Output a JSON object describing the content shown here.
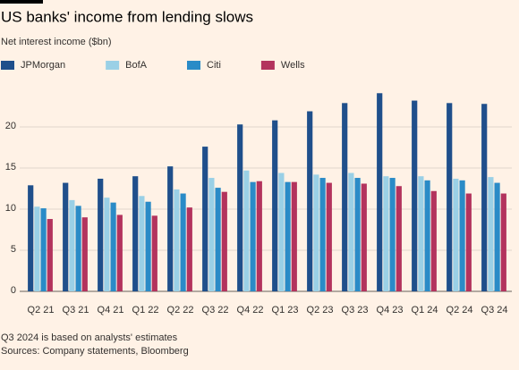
{
  "header": {
    "title": "US banks' income from lending slows",
    "subtitle": "Net interest income ($bn)"
  },
  "chart_data": {
    "type": "bar",
    "categories": [
      "Q2 21",
      "Q3 21",
      "Q4 21",
      "Q1 22",
      "Q2 22",
      "Q3 22",
      "Q4 22",
      "Q1 23",
      "Q2 23",
      "Q3 23",
      "Q4 23",
      "Q1 24",
      "Q2 24",
      "Q3 24"
    ],
    "series": [
      {
        "name": "JPMorgan",
        "color": "#1f4f8b",
        "values": [
          12.9,
          13.2,
          13.7,
          14.0,
          15.2,
          17.6,
          20.3,
          20.8,
          21.9,
          22.9,
          24.1,
          23.2,
          22.9,
          22.8
        ]
      },
      {
        "name": "BofA",
        "color": "#9ad0e6",
        "values": [
          10.3,
          11.1,
          11.4,
          11.6,
          12.4,
          13.8,
          14.7,
          14.4,
          14.2,
          14.4,
          14.0,
          14.0,
          13.7,
          13.9
        ]
      },
      {
        "name": "Citi",
        "color": "#2a8bc7",
        "values": [
          10.1,
          10.4,
          10.8,
          10.9,
          11.9,
          12.6,
          13.3,
          13.3,
          13.8,
          13.8,
          13.8,
          13.5,
          13.5,
          13.2
        ]
      },
      {
        "name": "Wells",
        "color": "#b3335d",
        "values": [
          8.8,
          9.0,
          9.3,
          9.2,
          10.2,
          12.1,
          13.4,
          13.3,
          13.2,
          13.1,
          12.8,
          12.2,
          11.9,
          11.9
        ]
      }
    ],
    "ylim": [
      0,
      25
    ],
    "yticks": [
      0,
      5,
      10,
      15,
      20
    ],
    "grid": true,
    "legend": "top"
  },
  "footer": {
    "note": "Q3 2024 is based on analysts' estimates",
    "source": "Sources: Company statements, Bloomberg"
  }
}
